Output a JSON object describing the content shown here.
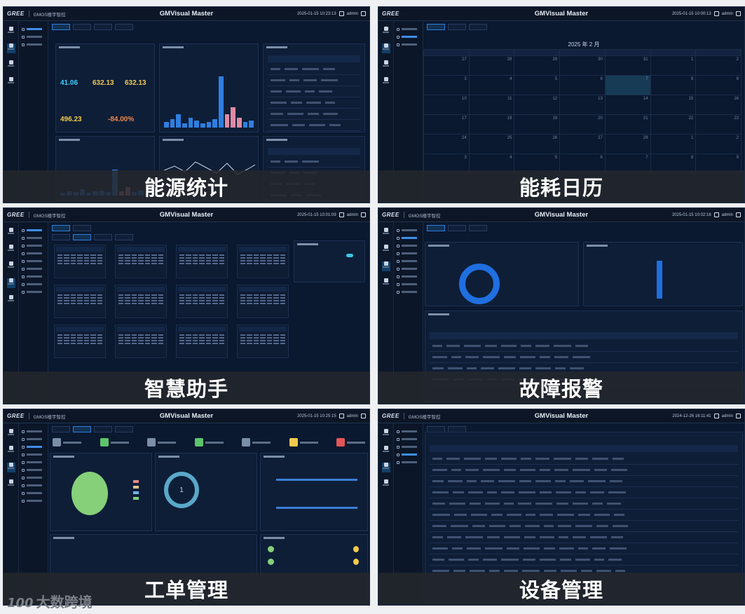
{
  "app": {
    "logo": "GREE",
    "app_name_short": "GMOS楼宇智控",
    "app_name_long": "GMOS楼宇智控",
    "title": "GMVisual Master",
    "user": "admin",
    "times": [
      "2025-01-15 10:23:13",
      "2025-01-15 10:00:13",
      "2025-01-15 10:01:09",
      "2025-01-15 10:02:16",
      "2025-01-15 10:25:15",
      "2024-12-26 16:11:41"
    ]
  },
  "panels": [
    {
      "id": "energy-stats",
      "caption": "能源统计"
    },
    {
      "id": "energy-calendar",
      "caption": "能耗日历"
    },
    {
      "id": "smart-assistant",
      "caption": "智慧助手"
    },
    {
      "id": "fault-alarm",
      "caption": "故障报警"
    },
    {
      "id": "work-order",
      "caption": "工单管理"
    },
    {
      "id": "device-management",
      "caption": "设备管理"
    }
  ],
  "energy": {
    "kpis": [
      "41.06",
      "632.13",
      "632.13",
      "496.23",
      "-84.00%"
    ]
  },
  "calendar": {
    "month_title": "2025 年 2 月",
    "weeks": [
      [
        "27",
        "28",
        "29",
        "30",
        "31",
        "1",
        "2"
      ],
      [
        "3",
        "4",
        "5",
        "6",
        "7",
        "8",
        "9"
      ],
      [
        "10",
        "11",
        "12",
        "13",
        "14",
        "15",
        "16"
      ],
      [
        "17",
        "18",
        "19",
        "20",
        "21",
        "22",
        "23"
      ],
      [
        "24",
        "25",
        "26",
        "27",
        "28",
        "1",
        "2"
      ],
      [
        "3",
        "4",
        "5",
        "6",
        "7",
        "8",
        "9"
      ]
    ]
  },
  "workorder": {
    "ring_value": "1"
  },
  "watermark": {
    "logo": "100",
    "text": "大数跨境"
  },
  "colors": {
    "bg": "#0a1830",
    "accent": "#2f7fe0",
    "kpi_cyan": "#3fd0ff",
    "kpi_yellow": "#f2c94c",
    "kpi_orange": "#f0874a",
    "green": "#86d07a"
  }
}
